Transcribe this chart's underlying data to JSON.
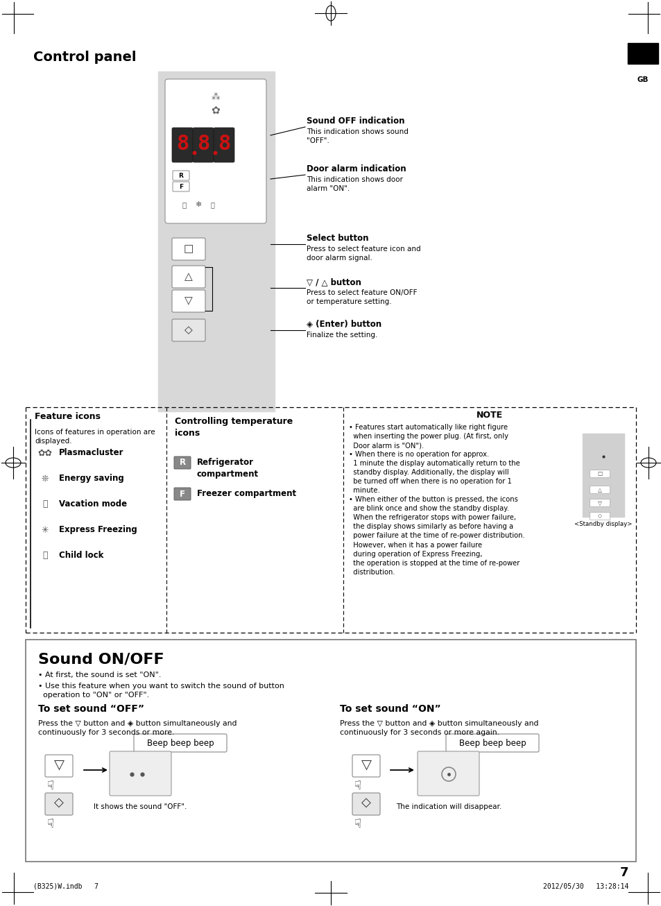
{
  "bg_color": "#ffffff",
  "panel_bg": "#d8d8d8",
  "title": "Control panel",
  "sound_title": "Sound ON/OFF",
  "page_number": "7",
  "footer_left": "(B325)W.indb   7",
  "footer_right": "2012/05/30   13:28:14",
  "annot_sound_off_title": "Sound OFF indication",
  "annot_sound_off_desc": "This indication shows sound\n\"OFF\".",
  "annot_door_title": "Door alarm indication",
  "annot_door_desc": "This indication shows door\nalarm \"ON\".",
  "annot_select_title": "Select button",
  "annot_select_desc": "Press to select feature icon and\ndoor alarm signal.",
  "annot_updown_title": "▽ / △ button",
  "annot_updown_desc": "Press to select feature ON/OFF\nor temperature setting.",
  "annot_enter_title": "◈ (Enter) button",
  "annot_enter_desc": "Finalize the setting.",
  "feat_title": "Feature icons",
  "feat_desc": "Icons of features in operation are\ndisplayed.",
  "ctrl_temp_title": "Controlling temperature\nicons",
  "note_title": "NOTE",
  "note_text": "• Features start automatically like right figure\n  when inserting the power plug. (At first, only\n  Door alarm is \"ON\").\n• When there is no operation for approx.\n  1 minute the display automatically return to the\n  standby display. Additionally, the display will\n  be turned off when there is no operation for 1\n  minute.\n• When either of the button is pressed, the icons\n  are blink once and show the standby display.\n  When the refrigerator stops with power failure,\n  the display shows similarly as before having a\n  power failure at the time of re-power distribution.\n  However, when it has a power failure\n  during operation of Express Freezing,\n  the operation is stopped at the time of re-power\n  distribution.",
  "standby_label": "<Standby display>",
  "sound_bullet1": "• At first, the sound is set \"ON\".",
  "sound_bullet2": "• Use this feature when you want to switch the sound of button\n  operation to \"ON\" or \"OFF\".",
  "set_off_title": "To set sound “OFF”",
  "set_off_desc": "Press the ▽ button and ◈ button simultaneously and\ncontinuously for 3 seconds or more.",
  "set_on_title": "To set sound “ON”",
  "set_on_desc": "Press the ▽ button and ◈ button simultaneously and\ncontinuously for 3 seconds or more again.",
  "beep_text": "Beep beep beep",
  "sound_off_label": "It shows the sound \"OFF\".",
  "sound_on_label": "The indication will disappear."
}
